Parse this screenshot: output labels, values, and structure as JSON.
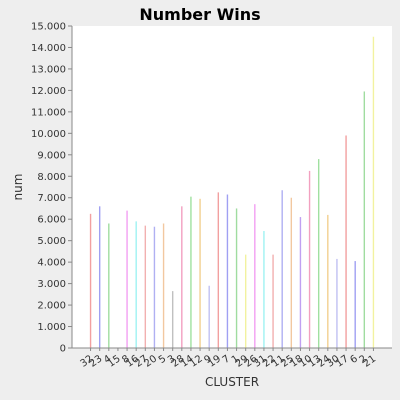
{
  "chart_data": {
    "type": "bar",
    "title": "Number Wins",
    "xlabel": "CLUSTER",
    "ylabel": "num",
    "ylim": [
      0,
      15000
    ],
    "yticks": [
      "0",
      "1.000",
      "2.000",
      "3.000",
      "4.000",
      "5.000",
      "6.000",
      "7.000",
      "8.000",
      "9.000",
      "10.000",
      "11.000",
      "12.000",
      "13.000",
      "14.000",
      "15.000"
    ],
    "grid": false,
    "legend": "none",
    "categories": [
      "32",
      "23",
      "4",
      "15",
      "8",
      "16",
      "27",
      "20",
      "5",
      "3",
      "28",
      "14",
      "12",
      "9",
      "19",
      "7",
      "1",
      "29",
      "26",
      "31",
      "22",
      "11",
      "25",
      "18",
      "10",
      "13",
      "24",
      "30",
      "17",
      "6",
      "2",
      "21"
    ],
    "values": [
      6250,
      6600,
      5800,
      0,
      6400,
      5900,
      5700,
      5650,
      5800,
      2650,
      6600,
      7050,
      6950,
      2900,
      7250,
      7150,
      6500,
      4350,
      6700,
      5450,
      4350,
      7350,
      7000,
      6100,
      8250,
      8800,
      6200,
      4150,
      9900,
      4050,
      11950,
      14500
    ],
    "colors": [
      "#f2a0a0",
      "#a0a0f2",
      "#a0dca0",
      "#f2f2a0",
      "#f2a0f2",
      "#a0f2f2",
      "#f2b0b0",
      "#b0b0f2",
      "#f2c8a0",
      "#c0c0c0",
      "#f2a0c0",
      "#a0e0a0",
      "#f2d090",
      "#c0c0f2",
      "#f2a0a0",
      "#a0a0f2",
      "#a0dca0",
      "#f2f2a0",
      "#f2a0f2",
      "#a0f2f2",
      "#f2b0b0",
      "#b0b0f2",
      "#f2c8a0",
      "#c0a0f2",
      "#f2a0c0",
      "#a0e0a0",
      "#f2d090",
      "#c0c0f2",
      "#f2a0a0",
      "#a0a0f2",
      "#a0dca0",
      "#f2f2a0"
    ]
  }
}
